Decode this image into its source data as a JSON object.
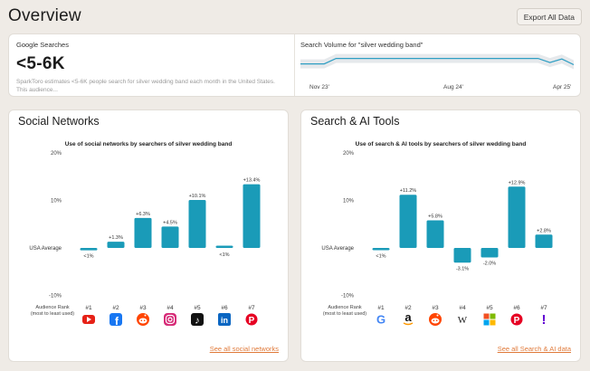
{
  "header": {
    "title": "Overview",
    "export_label": "Export All Data"
  },
  "summary": {
    "label": "Google Searches",
    "value": "<5-6K",
    "description": "SparkToro estimates <5-6K people search for silver wedding band each month in the United States. This audience...",
    "trend_title": "Search Volume for \"silver wedding band\"",
    "trend_ticks": [
      "Nov 23'",
      "Aug 24'",
      "Apr 25'"
    ],
    "trend_values": [
      58,
      58,
      58,
      78,
      78,
      78,
      78,
      78,
      78,
      78,
      78,
      78,
      78,
      78,
      78,
      78,
      78,
      78,
      78,
      78,
      78,
      63,
      76,
      55
    ],
    "trend_color": "#2e9ec3"
  },
  "social": {
    "title": "Social Networks",
    "link": "See all social networks",
    "chart_data": {
      "type": "bar",
      "title": "Use of social networks by searchers of silver wedding band",
      "y_ticks": [
        "20%",
        "10%",
        "-10%"
      ],
      "baseline_label": "USA Average",
      "ylim": [
        -10,
        20
      ],
      "rank_label": "Audience Rank",
      "rank_sub": "(most to least used)",
      "ranks": [
        "#1",
        "#2",
        "#3",
        "#4",
        "#5",
        "#6",
        "#7"
      ],
      "categories": [
        "YouTube",
        "Facebook",
        "Reddit",
        "Instagram",
        "TikTok",
        "LinkedIn",
        "Pinterest"
      ],
      "icons": [
        "youtube-icon",
        "facebook-icon",
        "reddit-icon",
        "instagram-icon",
        "tiktok-icon",
        "linkedin-icon",
        "pinterest-icon"
      ],
      "values": [
        -0.5,
        1.3,
        6.3,
        4.5,
        10.1,
        0.4,
        13.4
      ],
      "labels": [
        "<1%",
        "+1.3%",
        "+6.3%",
        "+4.5%",
        "+10.1%",
        "<1%",
        "+13.4%"
      ],
      "bar_color": "#1a9bb8"
    }
  },
  "search": {
    "title": "Search & AI Tools",
    "link": "See all Search & AI data",
    "chart_data": {
      "type": "bar",
      "title": "Use of search & AI tools by searchers of silver wedding band",
      "y_ticks": [
        "20%",
        "10%",
        "-10%"
      ],
      "baseline_label": "USA Average",
      "ylim": [
        -10,
        20
      ],
      "rank_label": "Audience Rank",
      "rank_sub": "(most to least used)",
      "ranks": [
        "#1",
        "#2",
        "#3",
        "#4",
        "#5",
        "#6",
        "#7"
      ],
      "categories": [
        "Google",
        "Amazon",
        "Reddit",
        "Wikipedia",
        "Microsoft",
        "Pinterest",
        "Yahoo"
      ],
      "icons": [
        "google-icon",
        "amazon-icon",
        "reddit-icon",
        "wikipedia-icon",
        "microsoft-icon",
        "pinterest-icon",
        "yahoo-icon"
      ],
      "values": [
        -0.3,
        11.2,
        5.8,
        -3.1,
        -2.0,
        12.9,
        2.8
      ],
      "labels": [
        "<1%",
        "+11.2%",
        "+5.8%",
        "-3.1%",
        "-2.0%",
        "+12.9%",
        "+2.8%"
      ],
      "bar_color": "#1a9bb8"
    }
  }
}
